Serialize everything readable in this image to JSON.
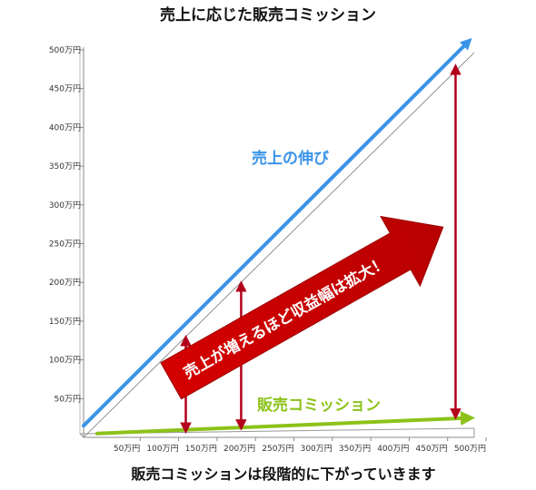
{
  "chart_data": {
    "type": "line",
    "title": "売上に応じた販売コミッション",
    "footer": "販売コミッションは段階的に下がっていきます",
    "x_ticks": [
      "50万円",
      "100万円",
      "150万円",
      "200万円",
      "250万円",
      "300万円",
      "350万円",
      "400万円",
      "450万円",
      "500万円"
    ],
    "y_ticks": [
      "50万円",
      "100万円",
      "150万円",
      "200万円",
      "250万円",
      "300万円",
      "350万円",
      "400万円",
      "450万円",
      "500万円"
    ],
    "xlim": [
      0,
      500
    ],
    "ylim": [
      0,
      500
    ],
    "grid": false,
    "series": [
      {
        "name": "売上の伸び",
        "color": "#3a93e8",
        "x": [
          0,
          500
        ],
        "y": [
          15,
          510
        ]
      },
      {
        "name": "販売コミッション",
        "color": "#8cc21a",
        "x": [
          0,
          500
        ],
        "y": [
          5,
          25
        ]
      }
    ],
    "gap_markers": [
      {
        "x": 133,
        "y_low": 12,
        "y_high": 125
      },
      {
        "x": 205,
        "y_low": 16,
        "y_high": 195
      },
      {
        "x": 484,
        "y_low": 30,
        "y_high": 475
      }
    ],
    "annotation": {
      "text": "売上が増えるほど収益幅は拡大！",
      "color": "#cc0000"
    }
  }
}
